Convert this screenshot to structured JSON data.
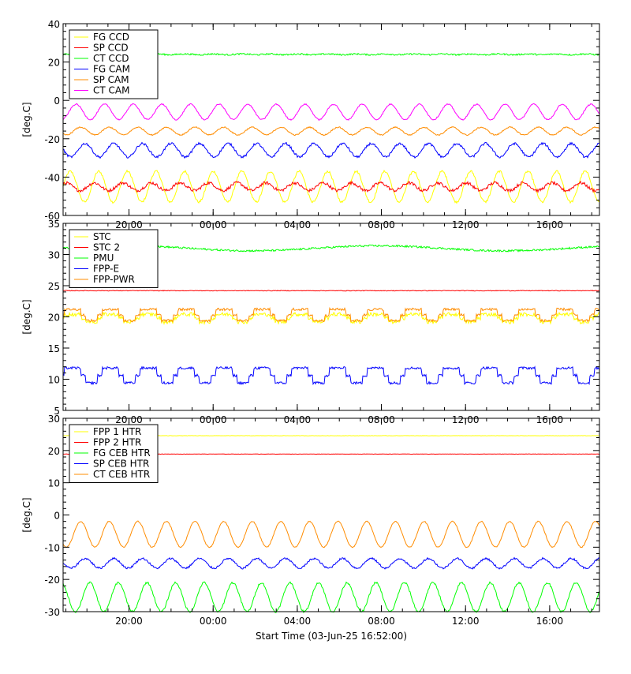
{
  "footer": {
    "xlabel": "Start Time (03-Jun-25 16:52:00)"
  },
  "chart_data": [
    {
      "type": "line",
      "ylabel": "[deg.C]",
      "ylim": [
        -60,
        40
      ],
      "yticks": [
        -60,
        -40,
        -20,
        0,
        20,
        40
      ],
      "xrange_hours": [
        0,
        25.5
      ],
      "xticks": [
        {
          "label": "20:00",
          "hour": 3.133
        },
        {
          "label": "00:00",
          "hour": 7.133
        },
        {
          "label": "04:00",
          "hour": 11.133
        },
        {
          "label": "08:00",
          "hour": 15.133
        },
        {
          "label": "12:00",
          "hour": 19.133
        },
        {
          "label": "16:00",
          "hour": 23.133
        }
      ],
      "legend_placement": "top-left",
      "series": [
        {
          "name": "FG CCD",
          "color": "#ffff00",
          "baseline": -45,
          "amplitude": 8,
          "period_hours": 1.36,
          "noise": 0.6,
          "style": "wave"
        },
        {
          "name": "SP CCD",
          "color": "#ff0000",
          "baseline": -45,
          "amplitude": 2,
          "period_hours": 1.36,
          "noise": 0.8,
          "style": "wave"
        },
        {
          "name": "CT CCD",
          "color": "#00ff00",
          "baseline": 24,
          "amplitude": 0.2,
          "period_hours": 1.36,
          "noise": 0.4,
          "style": "noisy"
        },
        {
          "name": "FG CAM",
          "color": "#0000ff",
          "baseline": -26,
          "amplitude": 3.5,
          "period_hours": 1.36,
          "noise": 0.6,
          "style": "wave"
        },
        {
          "name": "SP CAM",
          "color": "#ff8c00",
          "baseline": -16,
          "amplitude": 2,
          "period_hours": 1.36,
          "noise": 0.3,
          "style": "wave"
        },
        {
          "name": "CT CAM",
          "color": "#ff00ff",
          "baseline": -6,
          "amplitude": 4,
          "period_hours": 1.36,
          "noise": 0.3,
          "style": "wave"
        }
      ]
    },
    {
      "type": "line",
      "ylabel": "[deg.C]",
      "ylim": [
        5,
        35
      ],
      "yticks": [
        5,
        10,
        15,
        20,
        25,
        30,
        35
      ],
      "xrange_hours": [
        0,
        25.5
      ],
      "xticks": [
        {
          "label": "20:00",
          "hour": 3.133
        },
        {
          "label": "00:00",
          "hour": 7.133
        },
        {
          "label": "04:00",
          "hour": 11.133
        },
        {
          "label": "08:00",
          "hour": 15.133
        },
        {
          "label": "12:00",
          "hour": 19.133
        },
        {
          "label": "16:00",
          "hour": 23.133
        }
      ],
      "legend_placement": "top-left",
      "series": [
        {
          "name": "STC",
          "color": "#ffff00",
          "baseline": 19.8,
          "amplitude": 0.6,
          "period_hours": 1.8,
          "noise": 0.3,
          "style": "step"
        },
        {
          "name": "STC 2",
          "color": "#ff0000",
          "baseline": 24.2,
          "amplitude": 0.0,
          "period_hours": 1.8,
          "noise": 0.05,
          "style": "flat"
        },
        {
          "name": "PMU",
          "color": "#00ff00",
          "baseline": 31.0,
          "amplitude": 0.4,
          "period_hours": 12,
          "noise": 0.15,
          "style": "noisy"
        },
        {
          "name": "FPP-E",
          "color": "#0000ff",
          "baseline": 10.6,
          "amplitude": 1.2,
          "period_hours": 1.8,
          "noise": 0.2,
          "style": "step"
        },
        {
          "name": "FPP-PWR",
          "color": "#ff8c00",
          "baseline": 20.3,
          "amplitude": 0.9,
          "period_hours": 1.8,
          "noise": 0.2,
          "style": "step"
        }
      ]
    },
    {
      "type": "line",
      "ylabel": "[deg.C]",
      "ylim": [
        -30,
        30
      ],
      "yticks": [
        -30,
        -20,
        -10,
        0,
        10,
        20,
        30
      ],
      "xrange_hours": [
        0,
        25.5
      ],
      "xticks": [
        {
          "label": "20:00",
          "hour": 3.133
        },
        {
          "label": "00:00",
          "hour": 7.133
        },
        {
          "label": "04:00",
          "hour": 11.133
        },
        {
          "label": "08:00",
          "hour": 15.133
        },
        {
          "label": "12:00",
          "hour": 19.133
        },
        {
          "label": "16:00",
          "hour": 23.133
        }
      ],
      "legend_placement": "top-left",
      "series": [
        {
          "name": "FPP 1 HTR",
          "color": "#ffff00",
          "baseline": 24.6,
          "amplitude": 0.2,
          "period_hours": 12,
          "noise": 0.05,
          "style": "flat"
        },
        {
          "name": "FPP 2 HTR",
          "color": "#ff0000",
          "baseline": 18.9,
          "amplitude": 0.15,
          "period_hours": 1.36,
          "noise": 0.05,
          "style": "flat"
        },
        {
          "name": "FG CEB HTR",
          "color": "#00ff00",
          "baseline": -25.5,
          "amplitude": 4.5,
          "period_hours": 1.36,
          "noise": 0.3,
          "style": "wave"
        },
        {
          "name": "SP CEB HTR",
          "color": "#0000ff",
          "baseline": -15,
          "amplitude": 1.5,
          "period_hours": 1.36,
          "noise": 0.3,
          "style": "wave"
        },
        {
          "name": "CT CEB HTR",
          "color": "#ff8c00",
          "baseline": -6,
          "amplitude": 4,
          "period_hours": 1.36,
          "noise": 0.15,
          "style": "wave"
        }
      ]
    }
  ]
}
